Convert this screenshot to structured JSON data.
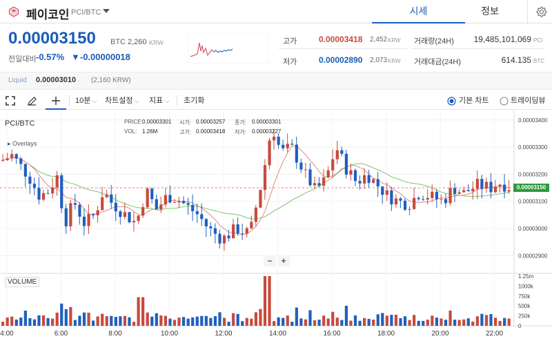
{
  "header": {
    "coin_name": "페이코인",
    "pair": "PCI/BTC",
    "tabs": [
      "시세",
      "정보"
    ]
  },
  "price": {
    "current": "0.00003150",
    "unit": "BTC",
    "krw": "2,260",
    "krw_unit": "KRW",
    "prev_label": "전일대비",
    "change_pct": "-0.57%",
    "change_amt": "▼-0.00000018"
  },
  "stats": {
    "high_label": "고가",
    "high_val": "0.00003418",
    "high_krw": "2,452",
    "low_label": "저가",
    "low_val": "0.00002890",
    "low_krw": "2,073",
    "krw_unit": "KRW",
    "volume_label": "거래량(24H)",
    "volume_val": "19,485,101.069",
    "volume_unit": "PCI",
    "amount_label": "거래대금(24H)",
    "amount_val": "614.135",
    "amount_unit": "BTC"
  },
  "last": {
    "label": "Liquid",
    "value": "0.00003010",
    "krw": "(2,160 KRW)"
  },
  "toolbar": {
    "interval": "10분",
    "chart_settings": "차트설정",
    "indicators": "지표",
    "reset": "초기화",
    "basic_chart": "기본 차트",
    "tradingview": "트레이딩뷰"
  },
  "chart_legend": {
    "symbol": "PCI/BTC",
    "overlays": "Overlays",
    "price_label": "PRICE:",
    "price_val": "0.00003301",
    "open_label": "시가:",
    "open_val": "0.00003257",
    "close_label": "종가:",
    "close_val": "0.00003301",
    "vol_label": "VOL:",
    "vol_val": "1.26M",
    "high_label": "고가:",
    "high_val": "0.00003418",
    "low_label": "저가:",
    "low_val": "0.00003227",
    "volume_pane": "VOLUME",
    "zoom_out": "−",
    "zoom_in": "+"
  },
  "colors": {
    "accent": "#1a5cb8",
    "up": "#c84a3c",
    "down": "#1f5fbf",
    "ma_short": "#e08a80",
    "ma_long": "#7cc56e"
  },
  "chart_data": {
    "type": "candlestick",
    "price_axis_ticks": [
      "0.00003400",
      "0.00003300",
      "0.00003200",
      "0.00003100",
      "0.00003000",
      "0.00002900"
    ],
    "price_axis_values": [
      3.4e-05,
      3.3e-05,
      3.2e-05,
      3.1e-05,
      3e-05,
      2.9e-05
    ],
    "current_price_label": "0.00003150",
    "volume_axis_ticks": [
      "1.25m",
      "1000k",
      "750k",
      "500k",
      "250k",
      "0"
    ],
    "time_axis_ticks": [
      "4:00",
      "6:00",
      "8:00",
      "10:00",
      "12:00",
      "14:00",
      "16:00",
      "18:00",
      "20:00",
      "22:00"
    ],
    "ylim": [
      2.855e-05,
      3.43e-05
    ],
    "volume_ylim": [
      0,
      1250000
    ]
  }
}
